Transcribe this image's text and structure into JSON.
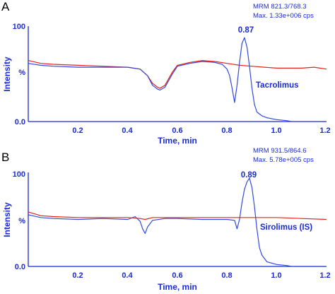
{
  "colors": {
    "axis": "#1a2bd6",
    "series_blue": "#3349e0",
    "series_red": "#e2231a",
    "panel_letter": "#000000"
  },
  "chart_data": [
    {
      "type": "line",
      "panel_label": "A",
      "header_line1": "MRM 821.3/768.3",
      "header_line2": "Max. 1.33e+006 cps",
      "xlabel": "Time, min",
      "ylabel": "Intensity",
      "xlim": [
        0.0,
        1.2
      ],
      "ylim": [
        0,
        100
      ],
      "x_ticks": [
        "0.2",
        "0.4",
        "0.6",
        "0.8",
        "1.0",
        "1.2"
      ],
      "y_ticks": [
        "100",
        "%",
        "0.0"
      ],
      "peak_label": "0.87",
      "compound_label": "Tacrolimus",
      "series": [
        {
          "color": "#3349e0",
          "x": [
            0.0,
            0.05,
            0.1,
            0.2,
            0.3,
            0.4,
            0.45,
            0.48,
            0.5,
            0.52,
            0.53,
            0.55,
            0.58,
            0.6,
            0.65,
            0.7,
            0.75,
            0.78,
            0.8,
            0.81,
            0.82,
            0.83,
            0.84,
            0.85,
            0.86,
            0.87,
            0.88,
            0.89,
            0.9,
            0.91,
            0.92,
            0.94,
            0.96,
            1.0,
            1.04,
            1.06
          ],
          "y": [
            61,
            59,
            58,
            57,
            57,
            57,
            55,
            48,
            38,
            34,
            33,
            36,
            50,
            58,
            61,
            63,
            62,
            60,
            55,
            48,
            35,
            20,
            38,
            62,
            82,
            88,
            78,
            58,
            35,
            18,
            10,
            6,
            4,
            2,
            1,
            0
          ]
        },
        {
          "color": "#e2231a",
          "x": [
            0.0,
            0.05,
            0.1,
            0.2,
            0.3,
            0.4,
            0.45,
            0.48,
            0.5,
            0.52,
            0.53,
            0.55,
            0.58,
            0.6,
            0.65,
            0.7,
            0.75,
            0.8,
            0.85,
            0.9,
            0.95,
            1.0,
            1.05,
            1.1,
            1.15,
            1.2
          ],
          "y": [
            64,
            61,
            60,
            59,
            58,
            57,
            55,
            48,
            40,
            36,
            35,
            38,
            52,
            59,
            62,
            64,
            63,
            61,
            59,
            58,
            57,
            56,
            56,
            56,
            57,
            55
          ]
        }
      ]
    },
    {
      "type": "line",
      "panel_label": "B",
      "header_line1": "MRM 931.5/864.6",
      "header_line2": "Max. 5.78e+005 cps",
      "xlabel": "Time, min",
      "ylabel": "Intensity",
      "xlim": [
        0.0,
        1.2
      ],
      "ylim": [
        0,
        100
      ],
      "x_ticks": [
        "0.2",
        "0.4",
        "0.6",
        "0.8",
        "1.0",
        "1.2"
      ],
      "y_ticks": [
        "100",
        "%",
        "0.0"
      ],
      "peak_label": "0.89",
      "compound_label": "Sirolimus (IS)",
      "series": [
        {
          "color": "#3349e0",
          "x": [
            0.0,
            0.05,
            0.1,
            0.2,
            0.3,
            0.4,
            0.43,
            0.45,
            0.46,
            0.47,
            0.48,
            0.5,
            0.55,
            0.6,
            0.7,
            0.8,
            0.83,
            0.84,
            0.85,
            0.86,
            0.87,
            0.88,
            0.89,
            0.9,
            0.91,
            0.92,
            0.93,
            0.94,
            0.96,
            1.0,
            1.04,
            1.06
          ],
          "y": [
            55,
            52,
            51,
            50,
            51,
            50,
            53,
            48,
            40,
            35,
            42,
            49,
            51,
            51,
            50,
            50,
            49,
            40,
            50,
            68,
            82,
            90,
            94,
            84,
            64,
            40,
            20,
            12,
            5,
            2,
            1,
            0
          ]
        },
        {
          "color": "#e2231a",
          "x": [
            0.0,
            0.05,
            0.1,
            0.2,
            0.3,
            0.4,
            0.45,
            0.47,
            0.5,
            0.55,
            0.6,
            0.7,
            0.8,
            0.9,
            1.0,
            1.1,
            1.2
          ],
          "y": [
            58,
            54,
            53,
            52,
            52,
            52,
            51,
            50,
            52,
            52,
            52,
            52,
            52,
            52,
            52,
            51,
            50
          ]
        }
      ]
    }
  ]
}
